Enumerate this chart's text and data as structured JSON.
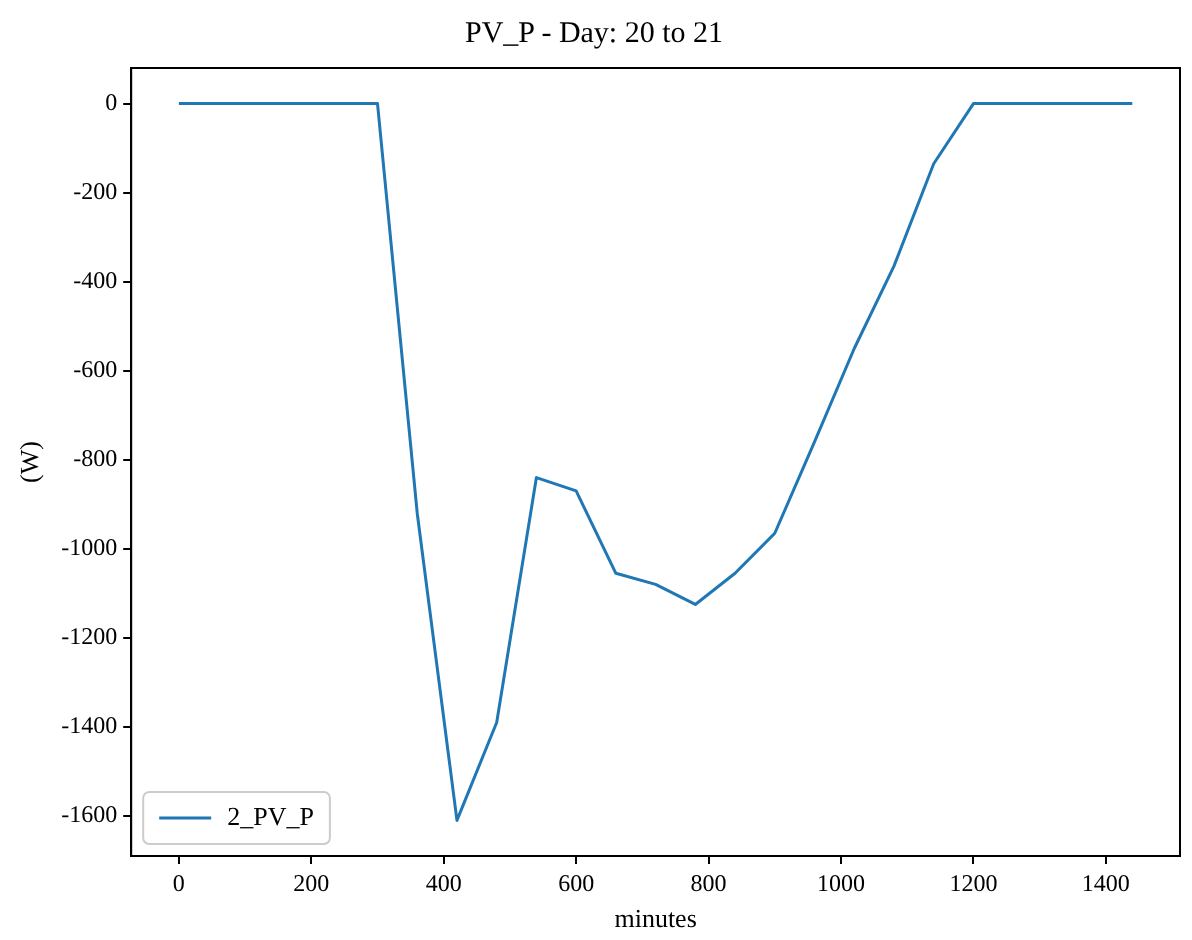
{
  "chart_data": {
    "type": "line",
    "title": "PV_P - Day: 20 to 21",
    "xlabel": "minutes",
    "ylabel": "(W)",
    "x": [
      0,
      60,
      120,
      180,
      240,
      300,
      360,
      420,
      480,
      540,
      600,
      660,
      720,
      780,
      840,
      900,
      960,
      1020,
      1080,
      1140,
      1200,
      1260,
      1320,
      1380,
      1440
    ],
    "series": [
      {
        "name": "2_PV_P",
        "color": "#1f77b4",
        "values": [
          0,
          0,
          0,
          0,
          0,
          0,
          -920,
          -1610,
          -1390,
          -840,
          -870,
          -1055,
          -1080,
          -1125,
          -1055,
          -965,
          -760,
          -550,
          -365,
          -135,
          0,
          0,
          0,
          0,
          0
        ]
      }
    ],
    "xlim": [
      -72,
      1512
    ],
    "ylim": [
      -1690,
      80
    ],
    "xticks": [
      0,
      200,
      400,
      600,
      800,
      1000,
      1200,
      1400
    ],
    "yticks": [
      -1600,
      -1400,
      -1200,
      -1000,
      -800,
      -600,
      -400,
      -200,
      0
    ],
    "grid": false,
    "legend": "bottom left",
    "marker": "none",
    "line_style": "solid"
  }
}
